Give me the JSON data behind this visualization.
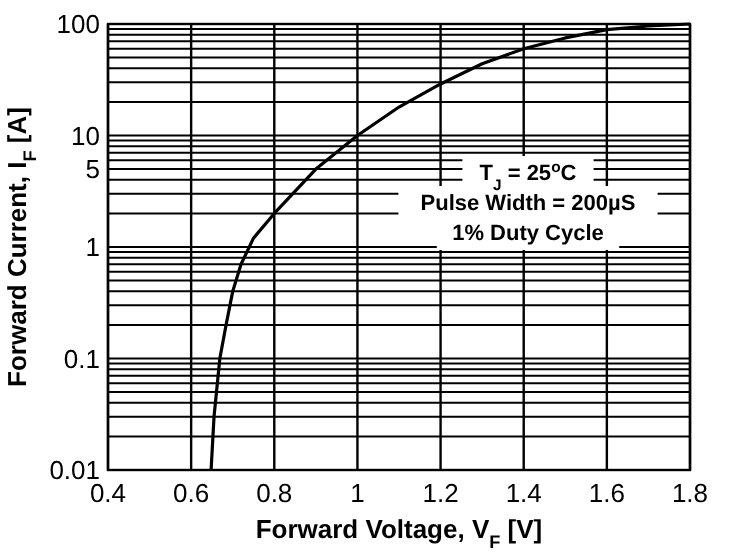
{
  "chart_data": {
    "type": "line",
    "xlabel": "Forward Voltage, V$_{F}$ [V]",
    "ylabel": "Forward Current, I$_{F}$ [A]",
    "x": [
      0.648,
      0.655,
      0.669,
      0.684,
      0.7,
      0.72,
      0.75,
      0.8,
      0.9,
      1.0,
      1.1,
      1.2,
      1.3,
      1.4,
      1.5,
      1.6,
      1.7,
      1.8
    ],
    "series": [
      {
        "color": "#000000",
        "values": [
          0.01,
          0.03,
          0.1,
          0.2,
          0.4,
          0.7,
          1.2,
          2,
          5,
          10,
          18,
          29,
          44,
          60,
          75,
          89,
          96,
          100
        ]
      }
    ],
    "log": "y",
    "grid": true,
    "marker": "none",
    "line_style": "solid",
    "xlim": [
      0.4,
      1.8
    ],
    "xticks": [
      0.4,
      0.6,
      0.8,
      1,
      1.2,
      1.4,
      1.6,
      1.8
    ],
    "ylim": [
      0.01,
      100
    ],
    "yticks": [
      0.01,
      {
        "value": 0.02,
        "label": null
      },
      {
        "value": 0.03,
        "label": null
      },
      {
        "value": 0.04,
        "label": null
      },
      {
        "value": 0.05,
        "label": null
      },
      {
        "value": 0.06,
        "label": null
      },
      {
        "value": 0.07,
        "label": null
      },
      {
        "value": 0.08,
        "label": null
      },
      {
        "value": 0.09,
        "label": null
      },
      0.1,
      {
        "value": 0.2,
        "label": null
      },
      {
        "value": 0.3,
        "label": null
      },
      {
        "value": 0.4,
        "label": null
      },
      {
        "value": 0.5,
        "label": null
      },
      {
        "value": 0.6,
        "label": null
      },
      {
        "value": 0.7,
        "label": null
      },
      {
        "value": 0.8,
        "label": null
      },
      {
        "value": 0.9,
        "label": null
      },
      1,
      {
        "value": 2,
        "label": null
      },
      {
        "value": 3,
        "label": null
      },
      {
        "value": 4,
        "label": null
      },
      5,
      {
        "value": 6,
        "label": null
      },
      {
        "value": 7,
        "label": null
      },
      {
        "value": 8,
        "label": null
      },
      {
        "value": 9,
        "label": null
      },
      10,
      {
        "value": 20,
        "label": null
      },
      {
        "value": 30,
        "label": null
      },
      {
        "value": 40,
        "label": null
      },
      {
        "value": 50,
        "label": null
      },
      {
        "value": 60,
        "label": null
      },
      {
        "value": 70,
        "label": null
      },
      {
        "value": 80,
        "label": null
      },
      {
        "value": 90,
        "label": null
      },
      100
    ],
    "annotations": [
      "T$_{J}$ = 25$^{o}$C",
      "Pulse Width = 200µS",
      "1% Duty Cycle"
    ]
  }
}
